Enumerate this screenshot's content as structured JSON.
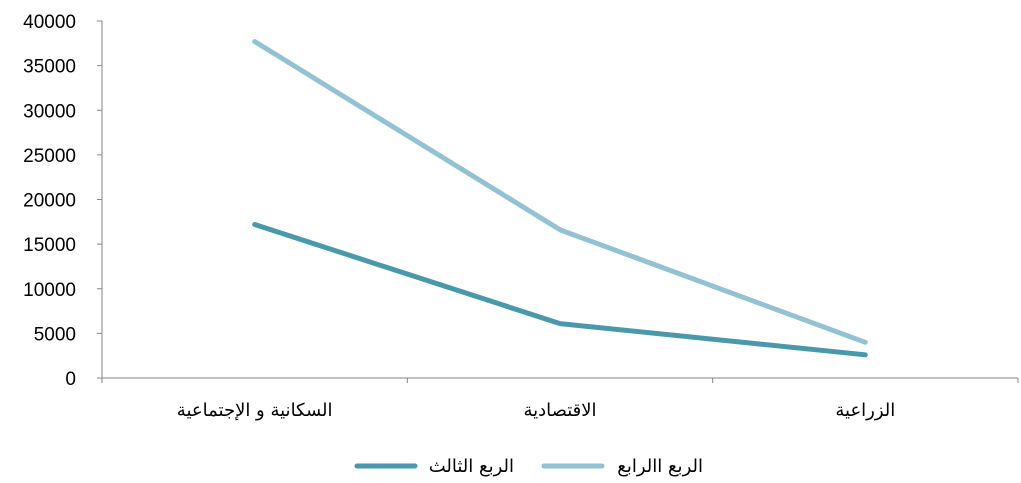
{
  "chart_data": {
    "type": "line",
    "categories": [
      "السكانية و الإجتماعية",
      "الاقتصادية",
      "الزراعية"
    ],
    "ylim": [
      0,
      40000
    ],
    "yticks": [
      0,
      5000,
      10000,
      15000,
      20000,
      25000,
      30000,
      35000,
      40000
    ],
    "grid": false,
    "legend_position": "bottom",
    "series": [
      {
        "name": "الربع الثالث",
        "color": "#4A98AC",
        "values": [
          17200,
          6100,
          2600
        ]
      },
      {
        "name": "الربع االرابع",
        "color": "#93C2D3",
        "values": [
          37700,
          16600,
          4000
        ]
      }
    ]
  }
}
